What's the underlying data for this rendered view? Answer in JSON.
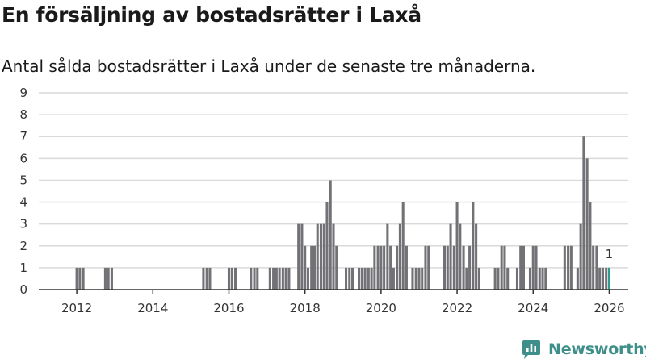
{
  "title": "En försäljning av bostadsrätter i Laxå",
  "subtitle": "Antal sålda bostadsrätter i Laxå under de senaste tre månaderna.",
  "brand": {
    "name": "Newsworthy",
    "icon": "newsworthy-logo-icon",
    "color": "#3e8f8a"
  },
  "colors": {
    "bar": "#727276",
    "highlight": "#2a9d8f",
    "grid": "#d9d9d9",
    "axis": "#333333"
  },
  "chart_data": {
    "type": "bar",
    "title": "En försäljning av bostadsrätter i Laxå",
    "xlabel": "",
    "ylabel": "",
    "ylim": [
      0,
      9
    ],
    "yticks": [
      0,
      1,
      2,
      3,
      4,
      5,
      6,
      7,
      8,
      9
    ],
    "xlim": [
      2011.0,
      2026.5
    ],
    "xticks": [
      2012,
      2014,
      2016,
      2018,
      2020,
      2022,
      2024,
      2026
    ],
    "grid": true,
    "series": [
      {
        "name": "Antal sålda bostadsrätter",
        "x": [
          2012.0,
          2012.08,
          2012.17,
          2012.75,
          2012.83,
          2012.92,
          2015.33,
          2015.42,
          2015.5,
          2016.0,
          2016.08,
          2016.17,
          2016.58,
          2016.67,
          2016.75,
          2017.08,
          2017.17,
          2017.25,
          2017.33,
          2017.42,
          2017.5,
          2017.58,
          2017.83,
          2017.92,
          2018.0,
          2018.08,
          2018.17,
          2018.25,
          2018.33,
          2018.42,
          2018.5,
          2018.58,
          2018.67,
          2018.75,
          2018.83,
          2019.08,
          2019.17,
          2019.25,
          2019.42,
          2019.5,
          2019.58,
          2019.67,
          2019.75,
          2019.83,
          2019.92,
          2020.0,
          2020.08,
          2020.17,
          2020.25,
          2020.33,
          2020.42,
          2020.5,
          2020.58,
          2020.67,
          2020.83,
          2020.92,
          2021.0,
          2021.08,
          2021.17,
          2021.25,
          2021.67,
          2021.75,
          2021.83,
          2021.92,
          2022.0,
          2022.08,
          2022.17,
          2022.25,
          2022.33,
          2022.42,
          2022.5,
          2022.58,
          2023.0,
          2023.08,
          2023.17,
          2023.25,
          2023.33,
          2023.58,
          2023.67,
          2023.75,
          2023.92,
          2024.0,
          2024.08,
          2024.17,
          2024.25,
          2024.33,
          2024.83,
          2024.92,
          2025.0,
          2025.17,
          2025.25,
          2025.33,
          2025.42,
          2025.5,
          2025.58,
          2025.67,
          2025.75,
          2025.83,
          2025.92,
          2026.0
        ],
        "values": [
          1,
          1,
          1,
          1,
          1,
          1,
          1,
          1,
          1,
          1,
          1,
          1,
          1,
          1,
          1,
          1,
          1,
          1,
          1,
          1,
          1,
          1,
          3,
          3,
          2,
          1,
          2,
          2,
          3,
          3,
          3,
          4,
          5,
          3,
          2,
          1,
          1,
          1,
          1,
          1,
          1,
          1,
          1,
          2,
          2,
          2,
          2,
          3,
          2,
          1,
          2,
          3,
          4,
          2,
          1,
          1,
          1,
          1,
          2,
          2,
          2,
          2,
          3,
          2,
          4,
          3,
          2,
          1,
          2,
          4,
          3,
          1,
          1,
          1,
          2,
          2,
          1,
          1,
          2,
          2,
          1,
          2,
          2,
          1,
          1,
          1,
          2,
          2,
          2,
          1,
          3,
          7,
          6,
          4,
          2,
          2,
          1,
          1,
          1,
          1
        ]
      }
    ],
    "highlight": {
      "x": 2026.0,
      "value": 1,
      "label": "1"
    }
  }
}
